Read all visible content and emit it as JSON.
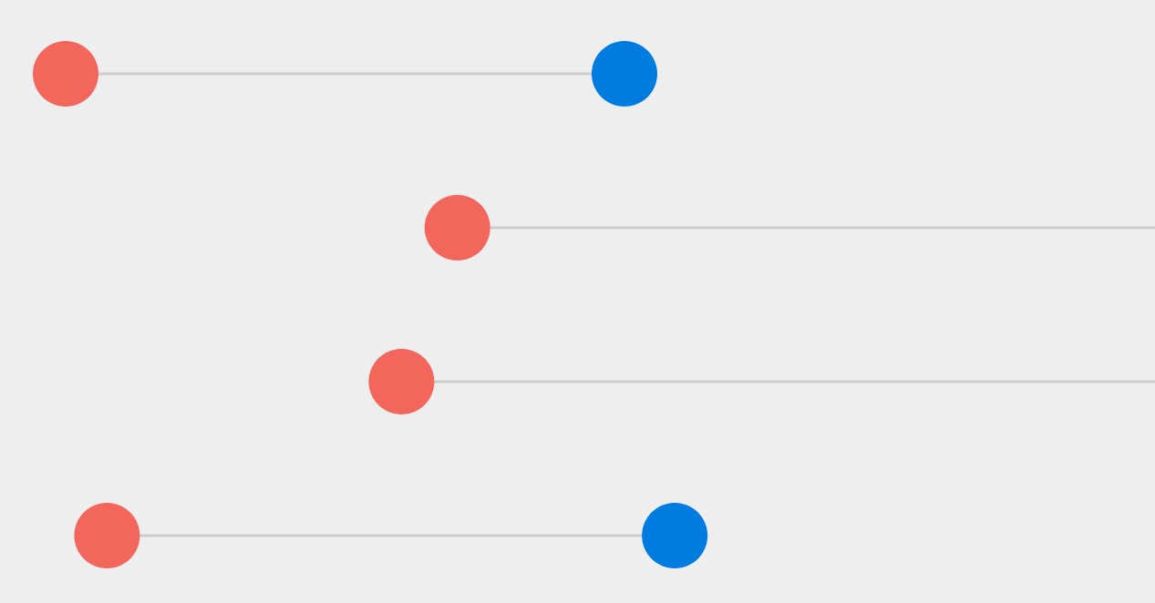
{
  "chart_data": {
    "type": "dumbbell",
    "title": "",
    "xlabel": "",
    "ylabel": "",
    "grid": false,
    "legend": "none",
    "categories": [
      "",
      "",
      "",
      ""
    ],
    "rows": [
      {
        "start": 0.0,
        "end": 1.0
      },
      {
        "start": 0.701,
        "end": null
      },
      {
        "start": 0.601,
        "end": null
      },
      {
        "start": 0.074,
        "end": 1.09
      }
    ],
    "colors": {
      "background": "#eeeeef",
      "start": "#f3665c",
      "end": "#007be0",
      "connector": "#cccccc"
    }
  }
}
